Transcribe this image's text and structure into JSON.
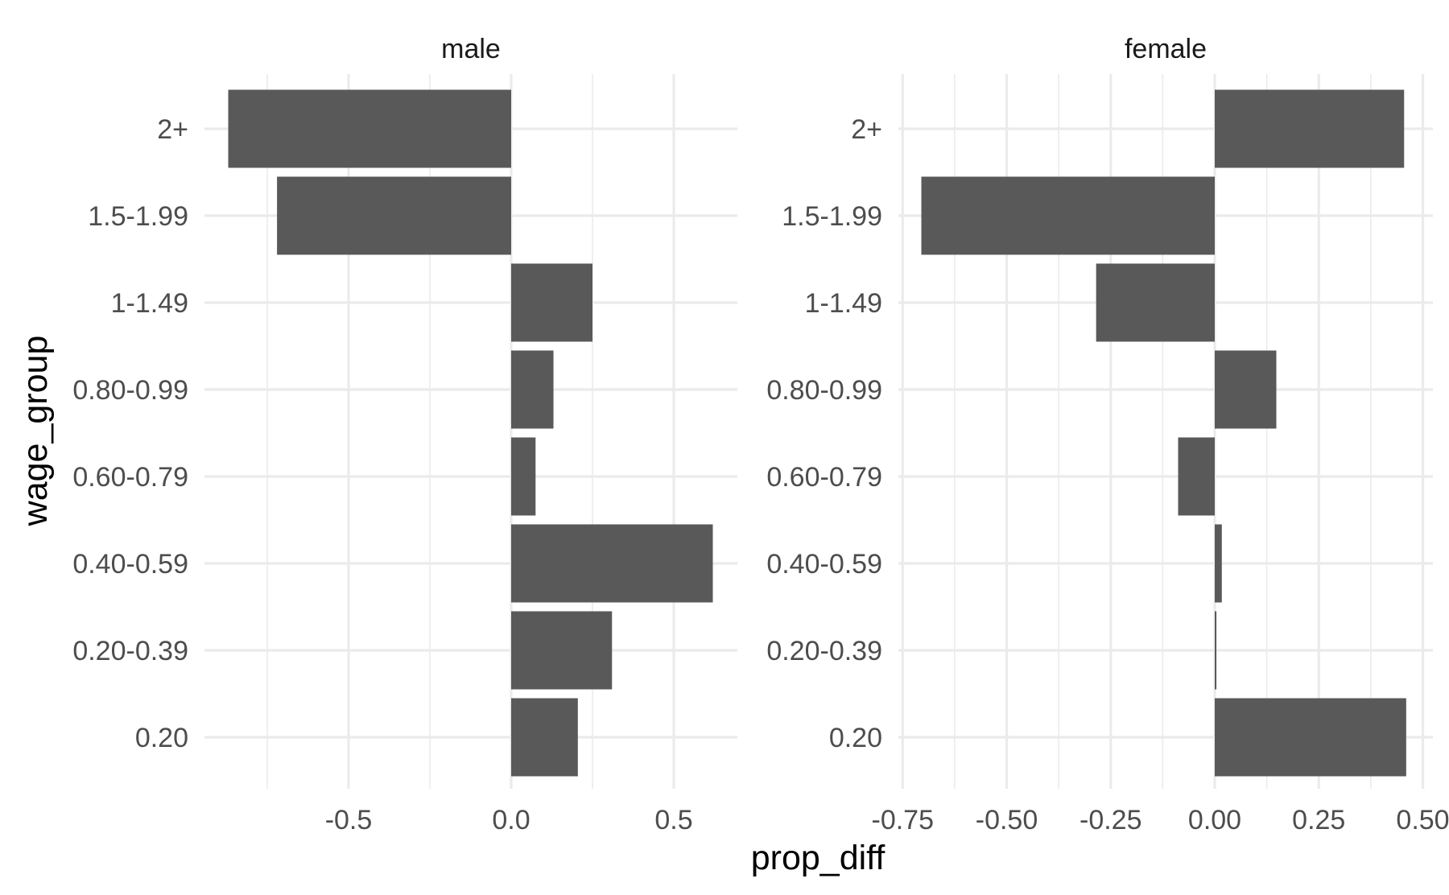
{
  "chart_data": {
    "type": "bar",
    "orientation": "horizontal",
    "xlabel": "prop_diff",
    "ylabel": "wage_group",
    "categories": [
      "2+",
      "1.5-1.99",
      "1-1.49",
      "0.80-0.99",
      "0.60-0.79",
      "0.40-0.59",
      "0.20-0.39",
      "0.20"
    ],
    "bar_color": "#595959",
    "grid_color": "#ebebeb",
    "grid": true,
    "legend": "none",
    "panels": [
      {
        "title": "male",
        "xlim": [
          -0.95,
          0.7
        ],
        "xticks": [
          -0.5,
          0.0,
          0.5
        ],
        "xtick_labels": [
          "-0.5",
          "0.0",
          "0.5"
        ],
        "xminor": [
          -0.75,
          -0.25,
          0.25
        ],
        "values": [
          -0.87,
          -0.72,
          0.25,
          0.13,
          0.075,
          0.62,
          0.31,
          0.205
        ]
      },
      {
        "title": "female",
        "xlim": [
          -0.75,
          0.5
        ],
        "xticks": [
          -0.75,
          -0.5,
          -0.25,
          0.0,
          0.25,
          0.5
        ],
        "xtick_labels": [
          "-0.75",
          "-0.50",
          "-0.25",
          "0.00",
          "0.25",
          "0.50"
        ],
        "xminor": [
          -0.625,
          -0.375,
          -0.125,
          0.125,
          0.375
        ],
        "values": [
          0.455,
          -0.705,
          -0.285,
          0.148,
          -0.088,
          0.017,
          0.004,
          0.46
        ]
      }
    ]
  }
}
